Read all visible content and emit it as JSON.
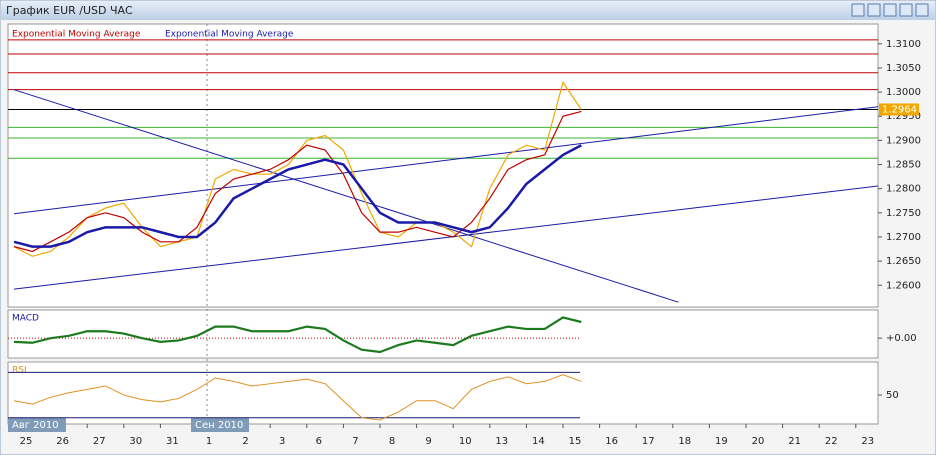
{
  "window": {
    "title": "График EUR /USD  ЧАС"
  },
  "chart_data": [
    {
      "type": "line",
      "categories": [
        "25",
        null,
        "26",
        null,
        "27",
        null,
        "30",
        null,
        "31",
        null,
        "1",
        null,
        "2",
        null,
        "3",
        null,
        "6",
        null,
        "7",
        null,
        "8",
        null,
        "9",
        null,
        "10",
        null,
        "13",
        null,
        "14",
        null,
        "15",
        null,
        "16",
        null,
        "17",
        null,
        "18",
        null,
        "19",
        null,
        "20",
        null,
        "21",
        null,
        "22",
        null,
        "23",
        null
      ],
      "month_labels": [
        "Авг 2010",
        "Сен 2010"
      ],
      "series": [
        {
          "color": "#f0a800",
          "values": [
            1.268,
            1.266,
            1.267,
            1.27,
            1.274,
            1.276,
            1.277,
            1.272,
            1.268,
            1.269,
            1.27,
            1.282,
            1.284,
            1.283,
            1.283,
            1.285,
            1.29,
            1.291,
            1.288,
            1.279,
            1.271,
            1.27,
            1.273,
            1.273,
            1.271,
            1.268,
            1.28,
            1.287,
            1.289,
            1.288,
            1.302,
            1.2964,
            null,
            null,
            null,
            null,
            null,
            null,
            null,
            null,
            null,
            null,
            null,
            null,
            null,
            null,
            null,
            null
          ]
        },
        {
          "name": "Exponential Moving Average",
          "color": "#c00000",
          "values": [
            1.268,
            1.267,
            1.269,
            1.271,
            1.274,
            1.275,
            1.274,
            1.271,
            1.269,
            1.269,
            1.272,
            1.279,
            1.282,
            1.283,
            1.284,
            1.286,
            1.289,
            1.288,
            1.283,
            1.275,
            1.271,
            1.271,
            1.272,
            1.271,
            1.27,
            1.273,
            1.278,
            1.284,
            1.286,
            1.287,
            1.295,
            1.296,
            null,
            null,
            null,
            null,
            null,
            null,
            null,
            null,
            null,
            null,
            null,
            null,
            null,
            null,
            null,
            null
          ]
        },
        {
          "name": "Exponential Moving Average",
          "color": "#1a1aa8",
          "values": [
            1.269,
            1.268,
            1.268,
            1.269,
            1.271,
            1.272,
            1.272,
            1.272,
            1.271,
            1.27,
            1.27,
            1.273,
            1.278,
            1.28,
            1.282,
            1.284,
            1.285,
            1.286,
            1.285,
            1.28,
            1.275,
            1.273,
            1.273,
            1.273,
            1.272,
            1.271,
            1.272,
            1.276,
            1.281,
            1.284,
            1.287,
            1.289,
            null,
            null,
            null,
            null,
            null,
            null,
            null,
            null,
            null,
            null,
            null,
            null,
            null,
            null,
            null,
            null
          ]
        }
      ],
      "trendlines": [
        {
          "color": "#1a1aa8",
          "x": [
            0,
            36.3
          ],
          "values": [
            1.3005,
            1.2565
          ]
        },
        {
          "color": "#1a1aa8",
          "x": [
            0,
            47.3
          ],
          "values": [
            1.2748,
            1.297
          ]
        },
        {
          "color": "#1a1aa8",
          "x": [
            0,
            47.3
          ],
          "values": [
            1.2592,
            1.2806
          ]
        }
      ],
      "levels": [
        {
          "value": 1.3108,
          "color": "#c00000"
        },
        {
          "value": 1.3079,
          "color": "#c00000"
        },
        {
          "value": 1.304,
          "color": "#c00000"
        },
        {
          "value": 1.3005,
          "color": "#c00000"
        },
        {
          "value": 1.2927,
          "color": "#3cb030"
        },
        {
          "value": 1.2905,
          "color": "#3cb030"
        },
        {
          "value": 1.2863,
          "color": "#3cb030"
        }
      ],
      "last_price": 1.2964,
      "ylim": [
        1.2555,
        1.3141
      ],
      "yticks": [
        {
          "value": 1.26,
          "label": "1.2600"
        },
        {
          "value": 1.265,
          "label": "1.2650"
        },
        {
          "value": 1.27,
          "label": "1.2700"
        },
        {
          "value": 1.275,
          "label": "1.2750"
        },
        {
          "value": 1.28,
          "label": "1.2800"
        },
        {
          "value": 1.285,
          "label": "1.2850"
        },
        {
          "value": 1.29,
          "label": "1.2900"
        },
        {
          "value": 1.295,
          "label": "1.2950"
        },
        {
          "value": 1.3,
          "label": "1.3000"
        },
        {
          "value": 1.305,
          "label": "1.3050"
        },
        {
          "value": 1.31,
          "label": "1.3100"
        }
      ]
    },
    {
      "type": "line",
      "title": "MACD",
      "color": "#1e7a1e",
      "values": [
        -0.0008,
        -0.001,
        0,
        0.0005,
        0.0015,
        0.0015,
        0.001,
        0,
        -0.0008,
        -0.0005,
        0.0005,
        0.0025,
        0.0025,
        0.0015,
        0.0015,
        0.0015,
        0.0025,
        0.002,
        -0.0005,
        -0.0025,
        -0.003,
        -0.0015,
        -0.0005,
        -0.001,
        -0.0015,
        0.0005,
        0.0015,
        0.0025,
        0.002,
        0.002,
        0.0045,
        0.0035
      ],
      "ylim": [
        -0.0043,
        0.0061
      ],
      "yticks": [
        {
          "value": 0,
          "label": "+0.00"
        }
      ]
    },
    {
      "type": "line",
      "title": "RSI",
      "color": "#e09020",
      "values": [
        45,
        42,
        48,
        52,
        55,
        58,
        50,
        46,
        44,
        47,
        55,
        65,
        62,
        58,
        60,
        62,
        64,
        60,
        45,
        30,
        28,
        35,
        45,
        45,
        38,
        55,
        62,
        66,
        60,
        62,
        68,
        62
      ],
      "levels": [
        70,
        30
      ],
      "ylim": [
        24.5,
        79.1
      ],
      "yticks": [
        50
      ]
    }
  ]
}
